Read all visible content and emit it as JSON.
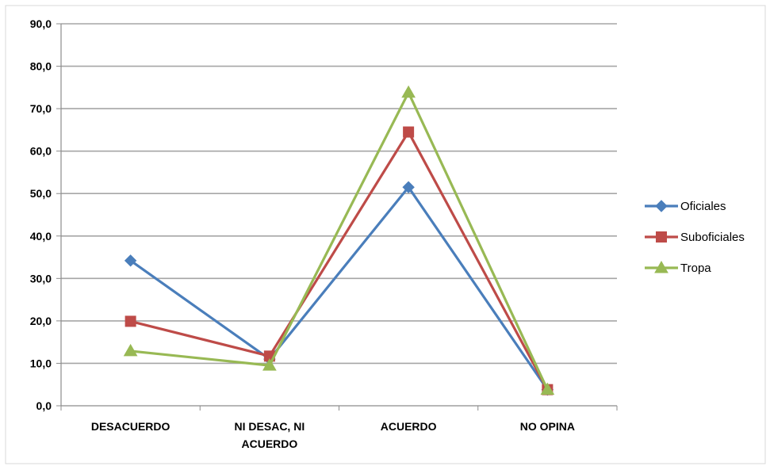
{
  "chart_data": {
    "type": "line",
    "title": "",
    "xlabel": "",
    "ylabel": "",
    "categories": [
      "DESACUERDO",
      "NI DESAC, NI ACUERDO",
      "ACUERDO",
      "NO OPINA"
    ],
    "category_lines": [
      [
        "DESACUERDO"
      ],
      [
        "NI DESAC, NI",
        "ACUERDO"
      ],
      [
        "ACUERDO"
      ],
      [
        "NO OPINA"
      ]
    ],
    "yticks": [
      "0,0",
      "10,0",
      "20,0",
      "30,0",
      "40,0",
      "50,0",
      "60,0",
      "70,0",
      "80,0",
      "90,0"
    ],
    "ylim": [
      0,
      90
    ],
    "grid": true,
    "legend_position": "right",
    "series": [
      {
        "name": "Oficiales",
        "values": [
          34.2,
          11.0,
          51.5,
          3.8
        ],
        "color": "#4a7ebb",
        "marker": "diamond"
      },
      {
        "name": "Suboficiales",
        "values": [
          19.9,
          11.7,
          64.5,
          3.8
        ],
        "color": "#be4b48",
        "marker": "square"
      },
      {
        "name": "Tropa",
        "values": [
          12.9,
          9.5,
          73.8,
          3.8
        ],
        "color": "#98b954",
        "marker": "triangle"
      }
    ]
  }
}
